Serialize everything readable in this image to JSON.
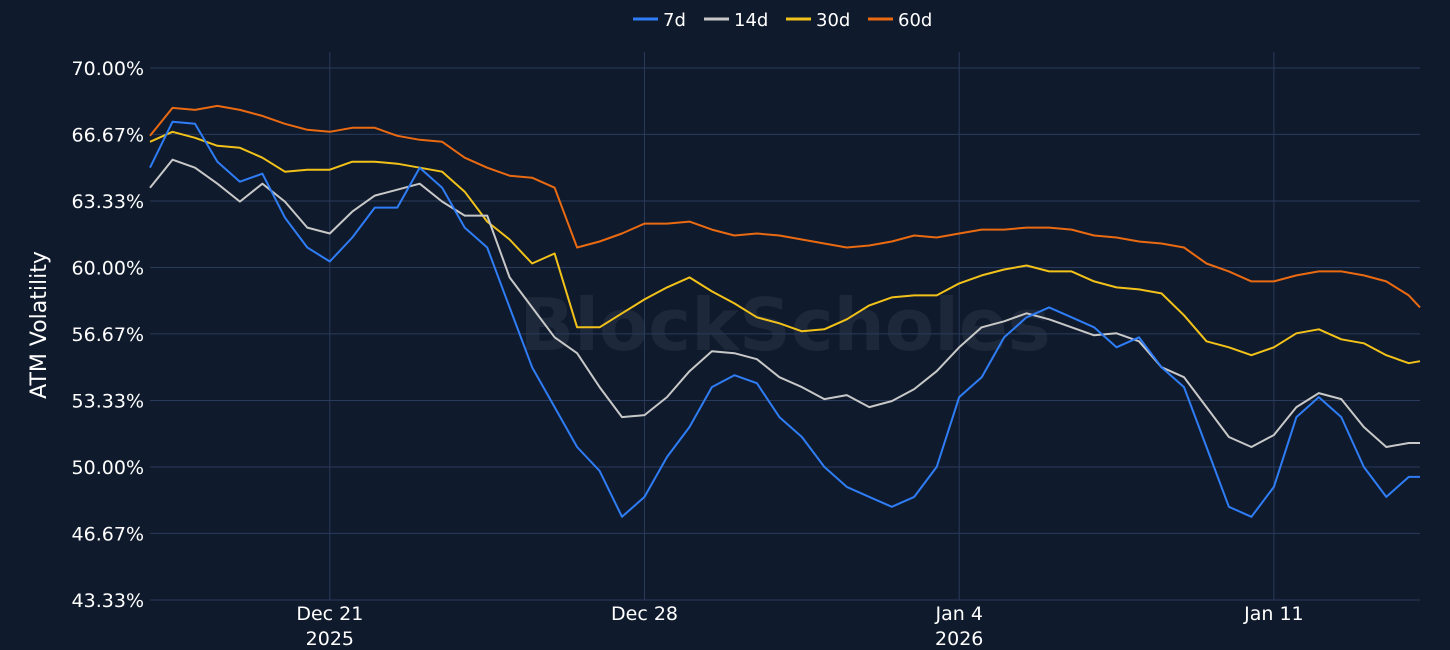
{
  "chart_data": {
    "type": "line",
    "title": "",
    "xlabel": "",
    "ylabel": "ATM Volatility",
    "watermark": "BlockScholes",
    "legend_position": "top-center",
    "grid": true,
    "colors": {
      "background": "#0f1a2c",
      "grid": "#2a3a5c",
      "text": "#ffffff"
    },
    "xlim": [
      "2025-12-17T00:00",
      "2026-01-14T06:00"
    ],
    "ylim": [
      43.33,
      70.5
    ],
    "y_ticks": [
      {
        "value": 43.33,
        "label": "43.33%"
      },
      {
        "value": 46.67,
        "label": "46.67%"
      },
      {
        "value": 50.0,
        "label": "50.00%"
      },
      {
        "value": 53.33,
        "label": "53.33%"
      },
      {
        "value": 56.67,
        "label": "56.67%"
      },
      {
        "value": 60.0,
        "label": "60.00%"
      },
      {
        "value": 63.33,
        "label": "63.33%"
      },
      {
        "value": 66.67,
        "label": "66.67%"
      },
      {
        "value": 70.0,
        "label": "70.00%"
      }
    ],
    "x_ticks": [
      {
        "value": "2025-12-21",
        "label": "Dec 21",
        "year": "2025"
      },
      {
        "value": "2025-12-28",
        "label": "Dec 28",
        "year": ""
      },
      {
        "value": "2026-01-04",
        "label": "Jan 4",
        "year": "2026"
      },
      {
        "value": "2026-01-11",
        "label": "Jan 11",
        "year": ""
      }
    ],
    "x": [
      "2025-12-17T00:00",
      "2025-12-17T12:00",
      "2025-12-18T00:00",
      "2025-12-18T12:00",
      "2025-12-19T00:00",
      "2025-12-19T12:00",
      "2025-12-20T00:00",
      "2025-12-20T12:00",
      "2025-12-21T00:00",
      "2025-12-21T12:00",
      "2025-12-22T00:00",
      "2025-12-22T12:00",
      "2025-12-23T00:00",
      "2025-12-23T12:00",
      "2025-12-24T00:00",
      "2025-12-24T12:00",
      "2025-12-25T00:00",
      "2025-12-25T12:00",
      "2025-12-26T00:00",
      "2025-12-26T12:00",
      "2025-12-27T00:00",
      "2025-12-27T12:00",
      "2025-12-28T00:00",
      "2025-12-28T12:00",
      "2025-12-29T00:00",
      "2025-12-29T12:00",
      "2025-12-30T00:00",
      "2025-12-30T12:00",
      "2025-12-31T00:00",
      "2025-12-31T12:00",
      "2026-01-01T00:00",
      "2026-01-01T12:00",
      "2026-01-02T00:00",
      "2026-01-02T12:00",
      "2026-01-03T00:00",
      "2026-01-03T12:00",
      "2026-01-04T00:00",
      "2026-01-04T12:00",
      "2026-01-05T00:00",
      "2026-01-05T12:00",
      "2026-01-06T00:00",
      "2026-01-06T12:00",
      "2026-01-07T00:00",
      "2026-01-07T12:00",
      "2026-01-08T00:00",
      "2026-01-08T12:00",
      "2026-01-09T00:00",
      "2026-01-09T12:00",
      "2026-01-10T00:00",
      "2026-01-10T12:00",
      "2026-01-11T00:00",
      "2026-01-11T12:00",
      "2026-01-12T00:00",
      "2026-01-12T12:00",
      "2026-01-13T00:00",
      "2026-01-13T12:00",
      "2026-01-14T00:00",
      "2026-01-14T06:00"
    ],
    "series": [
      {
        "name": "7d",
        "color": "#2f7df6",
        "values": [
          65.0,
          67.3,
          67.2,
          65.3,
          64.3,
          64.7,
          62.5,
          61.0,
          60.3,
          61.5,
          63.0,
          63.0,
          65.0,
          64.0,
          62.0,
          61.0,
          58.0,
          55.0,
          53.0,
          51.0,
          49.8,
          47.5,
          48.5,
          50.5,
          52.0,
          54.0,
          54.6,
          54.2,
          52.5,
          51.5,
          50.0,
          49.0,
          48.5,
          48.0,
          48.5,
          50.0,
          53.5,
          54.5,
          56.5,
          57.5,
          58.0,
          57.5,
          57.0,
          56.0,
          56.5,
          55.0,
          54.0,
          51.0,
          48.0,
          47.5,
          49.0,
          52.5,
          53.5,
          52.5,
          50.0,
          48.5,
          49.5,
          49.5
        ]
      },
      {
        "name": "14d",
        "color": "#c8c8c8",
        "values": [
          64.0,
          65.4,
          65.0,
          64.2,
          63.3,
          64.2,
          63.3,
          62.0,
          61.7,
          62.8,
          63.6,
          63.9,
          64.2,
          63.3,
          62.6,
          62.6,
          59.5,
          58.0,
          56.5,
          55.7,
          54.0,
          52.5,
          52.6,
          53.5,
          54.8,
          55.8,
          55.7,
          55.4,
          54.5,
          54.0,
          53.4,
          53.6,
          53.0,
          53.3,
          53.9,
          54.8,
          56.0,
          57.0,
          57.3,
          57.7,
          57.4,
          57.0,
          56.6,
          56.7,
          56.3,
          55.0,
          54.5,
          53.0,
          51.5,
          51.0,
          51.6,
          53.0,
          53.7,
          53.4,
          52.0,
          51.0,
          51.2,
          51.2
        ]
      },
      {
        "name": "30d",
        "color": "#f2c21a",
        "values": [
          66.3,
          66.8,
          66.5,
          66.1,
          66.0,
          65.5,
          64.8,
          64.9,
          64.9,
          65.3,
          65.3,
          65.2,
          65.0,
          64.8,
          63.8,
          62.3,
          61.4,
          60.2,
          60.7,
          57.0,
          57.0,
          57.7,
          58.4,
          59.0,
          59.5,
          58.8,
          58.2,
          57.5,
          57.2,
          56.8,
          56.9,
          57.4,
          58.1,
          58.5,
          58.6,
          58.6,
          59.2,
          59.6,
          59.9,
          60.1,
          59.8,
          59.8,
          59.3,
          59.0,
          58.9,
          58.7,
          57.6,
          56.3,
          56.0,
          55.6,
          56.0,
          56.7,
          56.9,
          56.4,
          56.2,
          55.6,
          55.2,
          55.3
        ]
      },
      {
        "name": "60d",
        "color": "#ea6a12",
        "values": [
          66.6,
          68.0,
          67.9,
          68.1,
          67.9,
          67.6,
          67.2,
          66.9,
          66.8,
          67.0,
          67.0,
          66.6,
          66.4,
          66.3,
          65.5,
          65.0,
          64.6,
          64.5,
          64.0,
          61.0,
          61.3,
          61.7,
          62.2,
          62.2,
          62.3,
          61.9,
          61.6,
          61.7,
          61.6,
          61.4,
          61.2,
          61.0,
          61.1,
          61.3,
          61.6,
          61.5,
          61.7,
          61.9,
          61.9,
          62.0,
          62.0,
          61.9,
          61.6,
          61.5,
          61.3,
          61.2,
          61.0,
          60.2,
          59.8,
          59.3,
          59.3,
          59.6,
          59.8,
          59.8,
          59.6,
          59.3,
          58.6,
          58.0
        ]
      }
    ]
  }
}
